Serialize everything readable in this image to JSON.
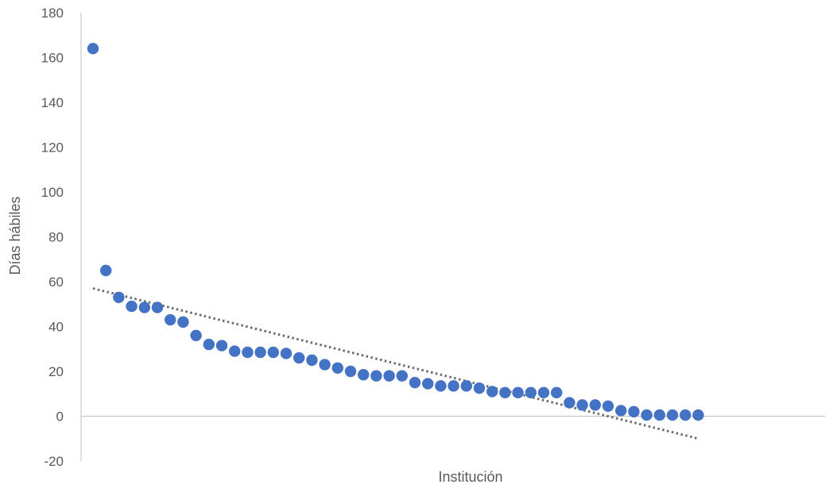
{
  "chart_data": {
    "type": "scatter",
    "title": "",
    "xlabel": "Institución",
    "ylabel": "Días hábiles",
    "ylim": [
      -20,
      180
    ],
    "yticks": [
      -20,
      0,
      20,
      40,
      60,
      80,
      100,
      120,
      140,
      160,
      180
    ],
    "grid": false,
    "legend": "none",
    "colors": {
      "points": "#4472C4",
      "trendline": "#6B6B6B",
      "axis": "#BFBFBF",
      "text": "#595959"
    },
    "series": [
      {
        "values": [
          164,
          65,
          53,
          49,
          48.5,
          48.5,
          43,
          42,
          36,
          32,
          31.5,
          29,
          28.5,
          28.5,
          28.5,
          28,
          26,
          25,
          23,
          21.5,
          20,
          18.5,
          18,
          18,
          18,
          15,
          14.5,
          13.5,
          13.5,
          13.5,
          12.5,
          11,
          10.5,
          10.5,
          10.5,
          10.5,
          10.5,
          6,
          5,
          5,
          4.5,
          2.5,
          2,
          0.5,
          0.5,
          0.5,
          0.5,
          0.5
        ]
      }
    ],
    "trendline": {
      "type": "linear",
      "style": "dotted",
      "start": 57,
      "end": -10
    }
  }
}
